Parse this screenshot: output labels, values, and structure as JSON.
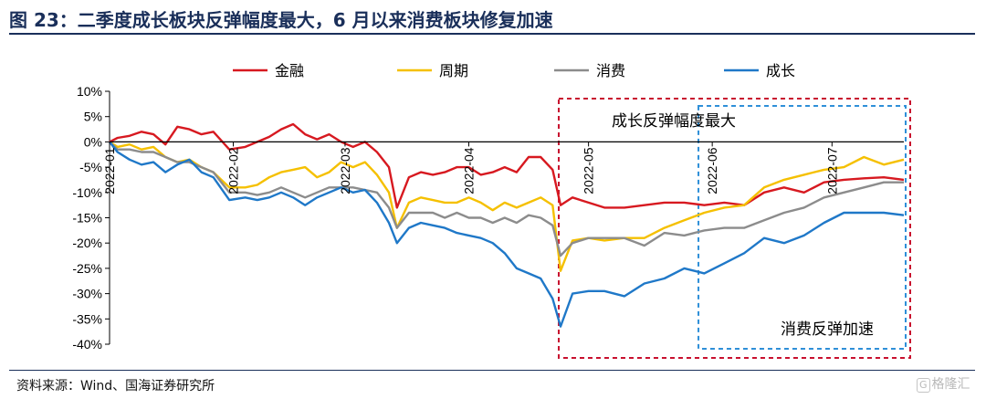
{
  "figure": {
    "title": "图 23：二季度成长板块反弹幅度最大，6 月以来消费板块修复加速",
    "source": "资料来源：Wind、国海证券研究所",
    "watermark_badge": "G",
    "watermark_text": "格隆汇"
  },
  "chart_data": {
    "type": "line",
    "title": "",
    "xlabel": "",
    "ylabel": "",
    "y_unit": "%",
    "ylim": [
      -40,
      10
    ],
    "ytick_labels": [
      "10%",
      "5%",
      "0%",
      "-5%",
      "-10%",
      "-15%",
      "-20%",
      "-25%",
      "-30%",
      "-35%",
      "-40%"
    ],
    "xlim": [
      "2022-01-04",
      "2022-07-22"
    ],
    "xtick_labels": [
      "2022-01",
      "2022-02",
      "2022-03",
      "2022-04",
      "2022-05",
      "2022-06",
      "2022-07"
    ],
    "xtick_dates": [
      "2022-01-04",
      "2022-02-04",
      "2022-03-04",
      "2022-04-04",
      "2022-05-04",
      "2022-06-04",
      "2022-07-04"
    ],
    "legend_position": "top",
    "grid": false,
    "colors": {
      "金融": "#d71920",
      "周期": "#f5c000",
      "消费": "#8c8c8c",
      "成长": "#1f78c8",
      "box_red": "#c8102e",
      "box_blue": "#2e8fd8"
    },
    "series": [
      {
        "name": "金融",
        "points": [
          [
            "2022-01-04",
            0
          ],
          [
            "2022-01-06",
            0.8
          ],
          [
            "2022-01-09",
            1.2
          ],
          [
            "2022-01-12",
            2
          ],
          [
            "2022-01-15",
            1.5
          ],
          [
            "2022-01-18",
            -0.5
          ],
          [
            "2022-01-21",
            3
          ],
          [
            "2022-01-24",
            2.5
          ],
          [
            "2022-01-27",
            1.5
          ],
          [
            "2022-01-30",
            2
          ],
          [
            "2022-02-03",
            -1.5
          ],
          [
            "2022-02-07",
            -1
          ],
          [
            "2022-02-10",
            0
          ],
          [
            "2022-02-13",
            1
          ],
          [
            "2022-02-16",
            2.5
          ],
          [
            "2022-02-19",
            3.5
          ],
          [
            "2022-02-22",
            1.5
          ],
          [
            "2022-02-25",
            0.5
          ],
          [
            "2022-02-28",
            1.5
          ],
          [
            "2022-03-03",
            0
          ],
          [
            "2022-03-06",
            -1
          ],
          [
            "2022-03-09",
            0
          ],
          [
            "2022-03-12",
            -2
          ],
          [
            "2022-03-15",
            -5
          ],
          [
            "2022-03-17",
            -13
          ],
          [
            "2022-03-20",
            -7
          ],
          [
            "2022-03-23",
            -6
          ],
          [
            "2022-03-26",
            -6.5
          ],
          [
            "2022-03-29",
            -6
          ],
          [
            "2022-04-01",
            -5
          ],
          [
            "2022-04-04",
            -5
          ],
          [
            "2022-04-07",
            -6.5
          ],
          [
            "2022-04-10",
            -6
          ],
          [
            "2022-04-13",
            -5
          ],
          [
            "2022-04-16",
            -6
          ],
          [
            "2022-04-19",
            -3
          ],
          [
            "2022-04-22",
            -3
          ],
          [
            "2022-04-25",
            -5.5
          ],
          [
            "2022-04-27",
            -12.5
          ],
          [
            "2022-04-30",
            -11
          ],
          [
            "2022-05-04",
            -12
          ],
          [
            "2022-05-08",
            -13
          ],
          [
            "2022-05-13",
            -13
          ],
          [
            "2022-05-18",
            -12.5
          ],
          [
            "2022-05-23",
            -12
          ],
          [
            "2022-05-28",
            -12
          ],
          [
            "2022-06-02",
            -12.5
          ],
          [
            "2022-06-07",
            -12
          ],
          [
            "2022-06-12",
            -12.5
          ],
          [
            "2022-06-17",
            -10
          ],
          [
            "2022-06-22",
            -9
          ],
          [
            "2022-06-27",
            -10
          ],
          [
            "2022-07-02",
            -8
          ],
          [
            "2022-07-07",
            -7.5
          ],
          [
            "2022-07-12",
            -7.2
          ],
          [
            "2022-07-17",
            -7
          ],
          [
            "2022-07-22",
            -7.5
          ]
        ]
      },
      {
        "name": "周期",
        "points": [
          [
            "2022-01-04",
            0
          ],
          [
            "2022-01-06",
            -1
          ],
          [
            "2022-01-09",
            -0.5
          ],
          [
            "2022-01-12",
            -1.5
          ],
          [
            "2022-01-15",
            -1
          ],
          [
            "2022-01-18",
            -3
          ],
          [
            "2022-01-21",
            -4
          ],
          [
            "2022-01-24",
            -3.5
          ],
          [
            "2022-01-27",
            -5
          ],
          [
            "2022-01-30",
            -6
          ],
          [
            "2022-02-03",
            -9
          ],
          [
            "2022-02-07",
            -9
          ],
          [
            "2022-02-10",
            -8.5
          ],
          [
            "2022-02-13",
            -7
          ],
          [
            "2022-02-16",
            -6
          ],
          [
            "2022-02-19",
            -5.5
          ],
          [
            "2022-02-22",
            -5
          ],
          [
            "2022-02-25",
            -7
          ],
          [
            "2022-02-28",
            -6
          ],
          [
            "2022-03-03",
            -4
          ],
          [
            "2022-03-06",
            -5
          ],
          [
            "2022-03-09",
            -4
          ],
          [
            "2022-03-12",
            -6.5
          ],
          [
            "2022-03-15",
            -10
          ],
          [
            "2022-03-17",
            -17
          ],
          [
            "2022-03-20",
            -12
          ],
          [
            "2022-03-23",
            -11
          ],
          [
            "2022-03-26",
            -11.5
          ],
          [
            "2022-03-29",
            -12
          ],
          [
            "2022-04-01",
            -12
          ],
          [
            "2022-04-04",
            -11
          ],
          [
            "2022-04-07",
            -12
          ],
          [
            "2022-04-10",
            -13.5
          ],
          [
            "2022-04-13",
            -12
          ],
          [
            "2022-04-16",
            -13
          ],
          [
            "2022-04-19",
            -12
          ],
          [
            "2022-04-22",
            -11
          ],
          [
            "2022-04-25",
            -12.5
          ],
          [
            "2022-04-27",
            -25.5
          ],
          [
            "2022-04-30",
            -19.5
          ],
          [
            "2022-05-04",
            -19
          ],
          [
            "2022-05-08",
            -19.5
          ],
          [
            "2022-05-13",
            -19
          ],
          [
            "2022-05-18",
            -19
          ],
          [
            "2022-05-23",
            -17
          ],
          [
            "2022-05-28",
            -15.5
          ],
          [
            "2022-06-02",
            -14
          ],
          [
            "2022-06-07",
            -13
          ],
          [
            "2022-06-12",
            -12.5
          ],
          [
            "2022-06-17",
            -9
          ],
          [
            "2022-06-22",
            -7.5
          ],
          [
            "2022-06-27",
            -6.5
          ],
          [
            "2022-07-02",
            -5.5
          ],
          [
            "2022-07-07",
            -5
          ],
          [
            "2022-07-12",
            -3
          ],
          [
            "2022-07-17",
            -4.5
          ],
          [
            "2022-07-22",
            -3.5
          ]
        ]
      },
      {
        "name": "消费",
        "points": [
          [
            "2022-01-04",
            0
          ],
          [
            "2022-01-06",
            -1.5
          ],
          [
            "2022-01-09",
            -1.5
          ],
          [
            "2022-01-12",
            -2
          ],
          [
            "2022-01-15",
            -2
          ],
          [
            "2022-01-18",
            -3
          ],
          [
            "2022-01-21",
            -4
          ],
          [
            "2022-01-24",
            -4
          ],
          [
            "2022-01-27",
            -5
          ],
          [
            "2022-01-30",
            -6
          ],
          [
            "2022-02-03",
            -10
          ],
          [
            "2022-02-07",
            -10
          ],
          [
            "2022-02-10",
            -10.5
          ],
          [
            "2022-02-13",
            -10
          ],
          [
            "2022-02-16",
            -9
          ],
          [
            "2022-02-19",
            -10
          ],
          [
            "2022-02-22",
            -11
          ],
          [
            "2022-02-25",
            -10
          ],
          [
            "2022-02-28",
            -9
          ],
          [
            "2022-03-03",
            -9
          ],
          [
            "2022-03-06",
            -9
          ],
          [
            "2022-03-09",
            -9.5
          ],
          [
            "2022-03-12",
            -10
          ],
          [
            "2022-03-15",
            -13
          ],
          [
            "2022-03-17",
            -17
          ],
          [
            "2022-03-20",
            -14
          ],
          [
            "2022-03-23",
            -14
          ],
          [
            "2022-03-26",
            -14
          ],
          [
            "2022-03-29",
            -15
          ],
          [
            "2022-04-01",
            -14
          ],
          [
            "2022-04-04",
            -15
          ],
          [
            "2022-04-07",
            -15
          ],
          [
            "2022-04-10",
            -16
          ],
          [
            "2022-04-13",
            -15
          ],
          [
            "2022-04-16",
            -16
          ],
          [
            "2022-04-19",
            -14.5
          ],
          [
            "2022-04-22",
            -15
          ],
          [
            "2022-04-25",
            -16.5
          ],
          [
            "2022-04-27",
            -22.5
          ],
          [
            "2022-04-30",
            -20
          ],
          [
            "2022-05-04",
            -19
          ],
          [
            "2022-05-08",
            -19
          ],
          [
            "2022-05-13",
            -19
          ],
          [
            "2022-05-18",
            -20.5
          ],
          [
            "2022-05-23",
            -18
          ],
          [
            "2022-05-28",
            -18.5
          ],
          [
            "2022-06-02",
            -17.5
          ],
          [
            "2022-06-07",
            -17
          ],
          [
            "2022-06-12",
            -17
          ],
          [
            "2022-06-17",
            -15.5
          ],
          [
            "2022-06-22",
            -14
          ],
          [
            "2022-06-27",
            -13
          ],
          [
            "2022-07-02",
            -11
          ],
          [
            "2022-07-07",
            -10
          ],
          [
            "2022-07-12",
            -9
          ],
          [
            "2022-07-17",
            -8
          ],
          [
            "2022-07-22",
            -8
          ]
        ]
      },
      {
        "name": "成长",
        "points": [
          [
            "2022-01-04",
            0
          ],
          [
            "2022-01-06",
            -2
          ],
          [
            "2022-01-09",
            -3.5
          ],
          [
            "2022-01-12",
            -4.5
          ],
          [
            "2022-01-15",
            -4
          ],
          [
            "2022-01-18",
            -6
          ],
          [
            "2022-01-21",
            -4.5
          ],
          [
            "2022-01-24",
            -3.5
          ],
          [
            "2022-01-27",
            -6
          ],
          [
            "2022-01-30",
            -7
          ],
          [
            "2022-02-03",
            -11.5
          ],
          [
            "2022-02-07",
            -11
          ],
          [
            "2022-02-10",
            -11.5
          ],
          [
            "2022-02-13",
            -11
          ],
          [
            "2022-02-16",
            -10
          ],
          [
            "2022-02-19",
            -11
          ],
          [
            "2022-02-22",
            -12.5
          ],
          [
            "2022-02-25",
            -11
          ],
          [
            "2022-02-28",
            -10
          ],
          [
            "2022-03-03",
            -9
          ],
          [
            "2022-03-06",
            -10
          ],
          [
            "2022-03-09",
            -9.5
          ],
          [
            "2022-03-12",
            -12
          ],
          [
            "2022-03-15",
            -16
          ],
          [
            "2022-03-17",
            -20
          ],
          [
            "2022-03-20",
            -17
          ],
          [
            "2022-03-23",
            -16
          ],
          [
            "2022-03-26",
            -16.5
          ],
          [
            "2022-03-29",
            -17
          ],
          [
            "2022-04-01",
            -18
          ],
          [
            "2022-04-04",
            -18.5
          ],
          [
            "2022-04-07",
            -19
          ],
          [
            "2022-04-10",
            -20
          ],
          [
            "2022-04-13",
            -22
          ],
          [
            "2022-04-16",
            -25
          ],
          [
            "2022-04-19",
            -26
          ],
          [
            "2022-04-22",
            -27
          ],
          [
            "2022-04-25",
            -31
          ],
          [
            "2022-04-27",
            -36.5
          ],
          [
            "2022-04-30",
            -30
          ],
          [
            "2022-05-04",
            -29.5
          ],
          [
            "2022-05-08",
            -29.5
          ],
          [
            "2022-05-13",
            -30.5
          ],
          [
            "2022-05-18",
            -28
          ],
          [
            "2022-05-23",
            -27
          ],
          [
            "2022-05-28",
            -25
          ],
          [
            "2022-06-02",
            -26
          ],
          [
            "2022-06-07",
            -24
          ],
          [
            "2022-06-12",
            -22
          ],
          [
            "2022-06-17",
            -19
          ],
          [
            "2022-06-22",
            -20
          ],
          [
            "2022-06-27",
            -18.5
          ],
          [
            "2022-07-02",
            -16
          ],
          [
            "2022-07-07",
            -14
          ],
          [
            "2022-07-12",
            -14
          ],
          [
            "2022-07-17",
            -14
          ],
          [
            "2022-07-22",
            -14.5
          ]
        ]
      }
    ],
    "annotations": [
      {
        "text": "成长反弹幅度最大",
        "style": "dashed-box",
        "color": "box_red",
        "x_range": [
          "2022-04-27",
          "2022-07-22"
        ]
      },
      {
        "text": "消费反弹加速",
        "style": "dashed-box",
        "color": "box_blue",
        "x_range": [
          "2022-06-01",
          "2022-07-22"
        ]
      }
    ]
  }
}
